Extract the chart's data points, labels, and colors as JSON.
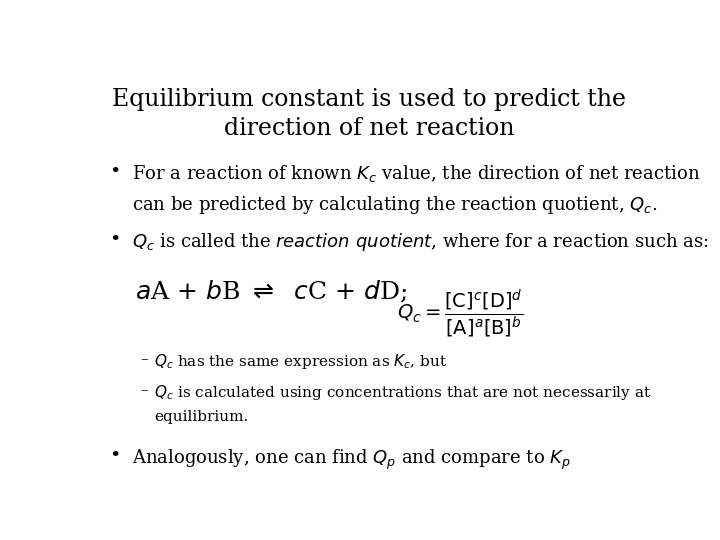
{
  "background_color": "#ffffff",
  "title_line1": "Equilibrium constant is used to predict the",
  "title_line2": "direction of net reaction",
  "title_fontsize": 17,
  "body_fontsize": 13,
  "small_fontsize": 11,
  "reaction_fontsize": 18,
  "formula_fontsize": 13
}
